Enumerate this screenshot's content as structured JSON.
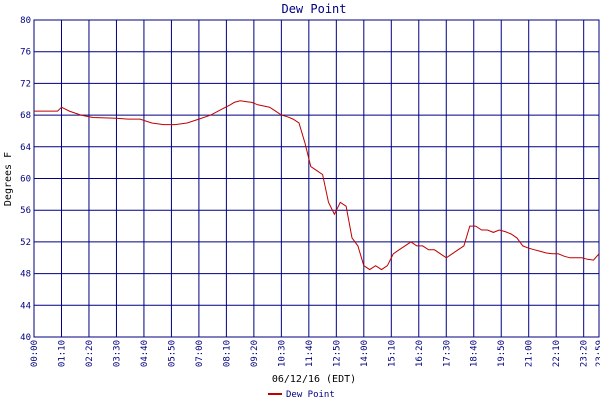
{
  "chart_data": {
    "type": "line",
    "title": "Dew Point",
    "xlabel": "06/12/16 (EDT)",
    "ylabel": "Degrees F",
    "ylim": [
      40,
      80
    ],
    "yticks": [
      "40",
      "44",
      "48",
      "52",
      "56",
      "60",
      "64",
      "68",
      "72",
      "76",
      "80"
    ],
    "xticks": [
      "00:00",
      "01:10",
      "02:20",
      "03:30",
      "04:40",
      "05:50",
      "07:00",
      "08:10",
      "09:20",
      "10:30",
      "11:40",
      "12:50",
      "14:00",
      "15:10",
      "16:20",
      "17:30",
      "18:40",
      "19:50",
      "21:00",
      "22:10",
      "23:20",
      "23:59"
    ],
    "grid": true,
    "legend_position": "bottom-center",
    "series": [
      {
        "name": "Dew Point",
        "color": "#c00000",
        "x_minutes": [
          0,
          30,
          60,
          70,
          90,
          120,
          150,
          210,
          240,
          270,
          300,
          330,
          360,
          390,
          420,
          450,
          480,
          500,
          510,
          525,
          540,
          555,
          570,
          600,
          615,
          630,
          645,
          660,
          675,
          690,
          705,
          720,
          735,
          750,
          765,
          780,
          795,
          810,
          825,
          840,
          855,
          870,
          885,
          900,
          915,
          930,
          945,
          960,
          975,
          990,
          1005,
          1020,
          1035,
          1050,
          1065,
          1080,
          1095,
          1110,
          1125,
          1140,
          1155,
          1170,
          1185,
          1200,
          1215,
          1230,
          1245,
          1260,
          1275,
          1290,
          1305,
          1320,
          1335,
          1350,
          1365,
          1380,
          1395,
          1410,
          1425,
          1439
        ],
        "values": [
          68.5,
          68.5,
          68.5,
          69.0,
          68.5,
          68.0,
          67.7,
          67.6,
          67.5,
          67.5,
          67.0,
          66.8,
          66.8,
          67.0,
          67.5,
          68.0,
          68.8,
          69.3,
          69.6,
          69.8,
          69.7,
          69.6,
          69.3,
          69.0,
          68.5,
          68.0,
          67.8,
          67.5,
          67.0,
          64.5,
          61.5,
          61.0,
          60.5,
          57.0,
          55.5,
          57.0,
          56.5,
          52.5,
          51.5,
          49.0,
          48.5,
          49.0,
          48.5,
          49.0,
          50.5,
          51.0,
          51.5,
          52.0,
          51.5,
          51.5,
          51.0,
          51.0,
          50.5,
          50.0,
          50.5,
          51.0,
          51.5,
          54.0,
          54.0,
          53.5,
          53.5,
          53.2,
          53.5,
          53.3,
          53.0,
          52.5,
          51.5,
          51.2,
          51.0,
          50.8,
          50.6,
          50.5,
          50.5,
          50.2,
          50.0,
          50.0,
          50.0,
          49.8,
          49.7,
          50.5
        ]
      }
    ]
  }
}
